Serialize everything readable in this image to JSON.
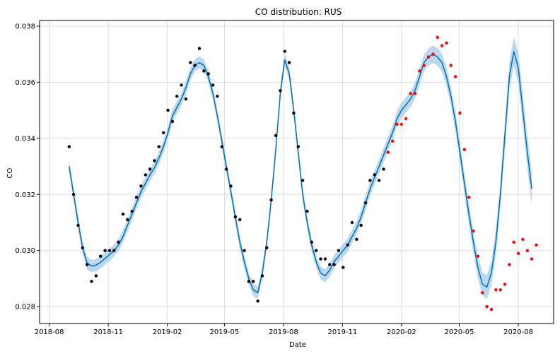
{
  "chart_data": {
    "type": "line",
    "title": "CO distribution: RUS",
    "xlabel": "Date",
    "ylabel": "CO",
    "grid": true,
    "xlim": [
      "2018-07-17",
      "2020-09-25"
    ],
    "ylim": [
      0.0274,
      0.0382
    ],
    "x_ticks": [
      {
        "date": "2018-08-01",
        "label": "2018-08"
      },
      {
        "date": "2018-11-01",
        "label": "2018-11"
      },
      {
        "date": "2019-02-01",
        "label": "2019-02"
      },
      {
        "date": "2019-05-01",
        "label": "2019-05"
      },
      {
        "date": "2019-08-01",
        "label": "2019-08"
      },
      {
        "date": "2019-11-01",
        "label": "2019-11"
      },
      {
        "date": "2020-02-01",
        "label": "2020-02"
      },
      {
        "date": "2020-05-01",
        "label": "2020-05"
      },
      {
        "date": "2020-08-01",
        "label": "2020-08"
      }
    ],
    "y_ticks": [
      {
        "value": 0.028,
        "label": "0.028"
      },
      {
        "value": 0.03,
        "label": "0.030"
      },
      {
        "value": 0.032,
        "label": "0.032"
      },
      {
        "value": 0.034,
        "label": "0.034"
      },
      {
        "value": 0.036,
        "label": "0.036"
      },
      {
        "value": 0.038,
        "label": "0.038"
      }
    ],
    "colors": {
      "forecast_line": "#0072b2",
      "uncertainty_band": "#9fc8e8",
      "observed_points": "#000000",
      "test_points": "#ff0000"
    },
    "series": [
      {
        "kind": "forecast",
        "points": [
          [
            "2018-09-01",
            0.033
          ],
          [
            "2018-09-08",
            0.032
          ],
          [
            "2018-09-15",
            0.031
          ],
          [
            "2018-09-22",
            0.0301
          ],
          [
            "2018-09-29",
            0.02955
          ],
          [
            "2018-10-06",
            0.02945
          ],
          [
            "2018-10-13",
            0.02948
          ],
          [
            "2018-10-20",
            0.02958
          ],
          [
            "2018-10-27",
            0.02972
          ],
          [
            "2018-11-03",
            0.02985
          ],
          [
            "2018-11-10",
            0.03
          ],
          [
            "2018-11-17",
            0.0302
          ],
          [
            "2018-11-24",
            0.0305
          ],
          [
            "2018-12-01",
            0.0309
          ],
          [
            "2018-12-08",
            0.0313
          ],
          [
            "2018-12-15",
            0.0317
          ],
          [
            "2018-12-22",
            0.0321
          ],
          [
            "2018-12-29",
            0.0324
          ],
          [
            "2019-01-05",
            0.0327
          ],
          [
            "2019-01-12",
            0.03295
          ],
          [
            "2019-01-19",
            0.0333
          ],
          [
            "2019-01-26",
            0.0337
          ],
          [
            "2019-02-02",
            0.0342
          ],
          [
            "2019-02-09",
            0.0348
          ],
          [
            "2019-02-16",
            0.0351
          ],
          [
            "2019-02-23",
            0.0354
          ],
          [
            "2019-03-02",
            0.0358
          ],
          [
            "2019-03-09",
            0.0363
          ],
          [
            "2019-03-16",
            0.0366
          ],
          [
            "2019-03-23",
            0.0367
          ],
          [
            "2019-03-30",
            0.0366
          ],
          [
            "2019-04-06",
            0.0362
          ],
          [
            "2019-04-13",
            0.0356
          ],
          [
            "2019-04-20",
            0.0348
          ],
          [
            "2019-04-27",
            0.0339
          ],
          [
            "2019-05-04",
            0.033
          ],
          [
            "2019-05-11",
            0.0321
          ],
          [
            "2019-05-18",
            0.0312
          ],
          [
            "2019-05-25",
            0.0303
          ],
          [
            "2019-06-01",
            0.0296
          ],
          [
            "2019-06-08",
            0.029
          ],
          [
            "2019-06-15",
            0.0286
          ],
          [
            "2019-06-22",
            0.0285
          ],
          [
            "2019-06-29",
            0.0292
          ],
          [
            "2019-07-06",
            0.0303
          ],
          [
            "2019-07-13",
            0.0318
          ],
          [
            "2019-07-20",
            0.0336
          ],
          [
            "2019-07-27",
            0.0356
          ],
          [
            "2019-08-03",
            0.0368
          ],
          [
            "2019-08-10",
            0.0363
          ],
          [
            "2019-08-17",
            0.035
          ],
          [
            "2019-08-24",
            0.0335
          ],
          [
            "2019-08-31",
            0.032
          ],
          [
            "2019-09-07",
            0.031
          ],
          [
            "2019-09-14",
            0.0302
          ],
          [
            "2019-09-21",
            0.0296
          ],
          [
            "2019-09-28",
            0.0292
          ],
          [
            "2019-10-05",
            0.0291
          ],
          [
            "2019-10-12",
            0.0293
          ],
          [
            "2019-10-19",
            0.0296
          ],
          [
            "2019-10-26",
            0.0298
          ],
          [
            "2019-11-02",
            0.03
          ],
          [
            "2019-11-09",
            0.0302
          ],
          [
            "2019-11-16",
            0.0305
          ],
          [
            "2019-11-23",
            0.0308
          ],
          [
            "2019-11-30",
            0.0312
          ],
          [
            "2019-12-07",
            0.0317
          ],
          [
            "2019-12-14",
            0.0322
          ],
          [
            "2019-12-21",
            0.0326
          ],
          [
            "2019-12-28",
            0.033
          ],
          [
            "2020-01-04",
            0.0334
          ],
          [
            "2020-01-11",
            0.0338
          ],
          [
            "2020-01-18",
            0.0342
          ],
          [
            "2020-01-25",
            0.0347
          ],
          [
            "2020-02-01",
            0.035
          ],
          [
            "2020-02-08",
            0.0352
          ],
          [
            "2020-02-15",
            0.0354
          ],
          [
            "2020-02-22",
            0.0357
          ],
          [
            "2020-02-29",
            0.0362
          ],
          [
            "2020-03-07",
            0.0367
          ],
          [
            "2020-03-14",
            0.0369
          ],
          [
            "2020-03-21",
            0.037
          ],
          [
            "2020-03-28",
            0.0369
          ],
          [
            "2020-04-04",
            0.0367
          ],
          [
            "2020-04-11",
            0.0362
          ],
          [
            "2020-04-18",
            0.0355
          ],
          [
            "2020-04-25",
            0.0346
          ],
          [
            "2020-05-02",
            0.0335
          ],
          [
            "2020-05-09",
            0.0324
          ],
          [
            "2020-05-16",
            0.0313
          ],
          [
            "2020-05-23",
            0.0303
          ],
          [
            "2020-05-30",
            0.0294
          ],
          [
            "2020-06-06",
            0.0288
          ],
          [
            "2020-06-13",
            0.0287
          ],
          [
            "2020-06-20",
            0.0292
          ],
          [
            "2020-06-27",
            0.0303
          ],
          [
            "2020-07-04",
            0.032
          ],
          [
            "2020-07-11",
            0.0341
          ],
          [
            "2020-07-18",
            0.0362
          ],
          [
            "2020-07-25",
            0.0371
          ],
          [
            "2020-08-01",
            0.0365
          ],
          [
            "2020-08-08",
            0.035
          ],
          [
            "2020-08-15",
            0.0335
          ],
          [
            "2020-08-22",
            0.0322
          ]
        ],
        "uncertainty_halfwidth": 0.00022,
        "uncertainty_halfwidth_end": 0.0006
      },
      {
        "kind": "observed",
        "points": [
          [
            "2018-09-01",
            0.0337
          ],
          [
            "2018-09-08",
            0.032
          ],
          [
            "2018-09-15",
            0.0309
          ],
          [
            "2018-09-22",
            0.0301
          ],
          [
            "2018-09-29",
            0.0295
          ],
          [
            "2018-10-06",
            0.0289
          ],
          [
            "2018-10-13",
            0.0291
          ],
          [
            "2018-10-20",
            0.0298
          ],
          [
            "2018-10-27",
            0.03
          ],
          [
            "2018-11-03",
            0.03
          ],
          [
            "2018-11-10",
            0.03
          ],
          [
            "2018-11-17",
            0.0303
          ],
          [
            "2018-11-24",
            0.0313
          ],
          [
            "2018-12-01",
            0.0311
          ],
          [
            "2018-12-08",
            0.0314
          ],
          [
            "2018-12-15",
            0.0319
          ],
          [
            "2018-12-22",
            0.0323
          ],
          [
            "2018-12-29",
            0.0327
          ],
          [
            "2019-01-05",
            0.0329
          ],
          [
            "2019-01-12",
            0.0332
          ],
          [
            "2019-01-19",
            0.0337
          ],
          [
            "2019-01-26",
            0.0342
          ],
          [
            "2019-02-02",
            0.035
          ],
          [
            "2019-02-09",
            0.0346
          ],
          [
            "2019-02-16",
            0.0355
          ],
          [
            "2019-02-23",
            0.0359
          ],
          [
            "2019-03-02",
            0.0354
          ],
          [
            "2019-03-09",
            0.0367
          ],
          [
            "2019-03-16",
            0.0366
          ],
          [
            "2019-03-23",
            0.0372
          ],
          [
            "2019-03-30",
            0.0364
          ],
          [
            "2019-04-06",
            0.0363
          ],
          [
            "2019-04-13",
            0.0359
          ],
          [
            "2019-04-20",
            0.0355
          ],
          [
            "2019-04-27",
            0.0337
          ],
          [
            "2019-05-04",
            0.0329
          ],
          [
            "2019-05-11",
            0.0323
          ],
          [
            "2019-05-18",
            0.0312
          ],
          [
            "2019-05-25",
            0.0311
          ],
          [
            "2019-06-01",
            0.03
          ],
          [
            "2019-06-08",
            0.0289
          ],
          [
            "2019-06-15",
            0.0289
          ],
          [
            "2019-06-22",
            0.0282
          ],
          [
            "2019-06-29",
            0.0291
          ],
          [
            "2019-07-06",
            0.0301
          ],
          [
            "2019-07-13",
            0.0318
          ],
          [
            "2019-07-20",
            0.0341
          ],
          [
            "2019-07-27",
            0.0357
          ],
          [
            "2019-08-03",
            0.0371
          ],
          [
            "2019-08-10",
            0.0367
          ],
          [
            "2019-08-17",
            0.0349
          ],
          [
            "2019-08-24",
            0.0337
          ],
          [
            "2019-08-31",
            0.0325
          ],
          [
            "2019-09-07",
            0.0314
          ],
          [
            "2019-09-14",
            0.0303
          ],
          [
            "2019-09-21",
            0.03
          ],
          [
            "2019-09-28",
            0.0297
          ],
          [
            "2019-10-05",
            0.0297
          ],
          [
            "2019-10-12",
            0.0295
          ],
          [
            "2019-10-19",
            0.0295
          ],
          [
            "2019-10-26",
            0.03
          ],
          [
            "2019-11-02",
            0.0294
          ],
          [
            "2019-11-09",
            0.0302
          ],
          [
            "2019-11-16",
            0.031
          ],
          [
            "2019-11-23",
            0.0304
          ],
          [
            "2019-11-30",
            0.0309
          ],
          [
            "2019-12-07",
            0.0317
          ],
          [
            "2019-12-14",
            0.0325
          ],
          [
            "2019-12-21",
            0.0327
          ],
          [
            "2019-12-28",
            0.0325
          ],
          [
            "2020-01-04",
            0.0329
          ]
        ]
      },
      {
        "kind": "test",
        "points": [
          [
            "2020-01-11",
            0.0335
          ],
          [
            "2020-01-18",
            0.0339
          ],
          [
            "2020-01-25",
            0.0345
          ],
          [
            "2020-02-01",
            0.0345
          ],
          [
            "2020-02-08",
            0.0347
          ],
          [
            "2020-02-15",
            0.0356
          ],
          [
            "2020-02-22",
            0.0356
          ],
          [
            "2020-02-29",
            0.0364
          ],
          [
            "2020-03-07",
            0.0366
          ],
          [
            "2020-03-14",
            0.0369
          ],
          [
            "2020-03-21",
            0.037
          ],
          [
            "2020-03-28",
            0.0376
          ],
          [
            "2020-04-04",
            0.0373
          ],
          [
            "2020-04-11",
            0.0374
          ],
          [
            "2020-04-18",
            0.0366
          ],
          [
            "2020-04-25",
            0.0362
          ],
          [
            "2020-05-02",
            0.0349
          ],
          [
            "2020-05-09",
            0.0336
          ],
          [
            "2020-05-16",
            0.0319
          ],
          [
            "2020-05-23",
            0.0307
          ],
          [
            "2020-05-30",
            0.0298
          ],
          [
            "2020-06-06",
            0.0285
          ],
          [
            "2020-06-13",
            0.028
          ],
          [
            "2020-06-20",
            0.0279
          ],
          [
            "2020-06-27",
            0.0286
          ],
          [
            "2020-07-04",
            0.0286
          ],
          [
            "2020-07-11",
            0.0288
          ],
          [
            "2020-07-18",
            0.0295
          ],
          [
            "2020-07-25",
            0.0303
          ],
          [
            "2020-08-01",
            0.0299
          ],
          [
            "2020-08-08",
            0.0304
          ],
          [
            "2020-08-15",
            0.03
          ],
          [
            "2020-08-22",
            0.0297
          ],
          [
            "2020-08-29",
            0.0302
          ]
        ]
      }
    ]
  }
}
